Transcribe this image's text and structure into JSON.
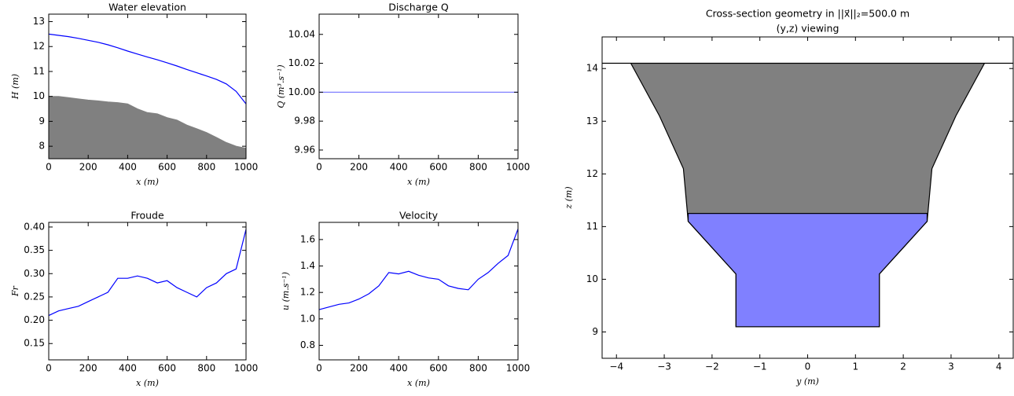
{
  "chart_data": [
    {
      "type": "line",
      "title": "Water elevation",
      "x_label": "x    (m)",
      "y_label": "H  (m)",
      "x": [
        0,
        50,
        100,
        150,
        200,
        250,
        300,
        350,
        400,
        450,
        500,
        550,
        600,
        650,
        700,
        750,
        800,
        850,
        900,
        950,
        1000
      ],
      "series": [
        {
          "color": "#0000ff",
          "fill": false,
          "values": [
            12.5,
            12.45,
            12.4,
            12.33,
            12.25,
            12.17,
            12.07,
            11.95,
            11.82,
            11.7,
            11.58,
            11.47,
            11.35,
            11.22,
            11.08,
            10.95,
            10.82,
            10.68,
            10.5,
            10.2,
            9.7
          ]
        },
        {
          "color": "#808080",
          "fill": true,
          "values": [
            10,
            10,
            9.95,
            9.9,
            9.85,
            9.82,
            9.78,
            9.75,
            9.7,
            9.5,
            9.35,
            9.3,
            9.15,
            9.05,
            8.85,
            8.7,
            8.55,
            8.35,
            8.15,
            8.0,
            7.92
          ]
        }
      ],
      "xlim": [
        0,
        1000
      ],
      "xticks": [
        0,
        200,
        400,
        600,
        800,
        1000
      ],
      "ylim": [
        7.5,
        13.3
      ],
      "yticks": [
        8,
        9,
        10,
        11,
        12,
        13
      ]
    },
    {
      "type": "line",
      "title": "Discharge Q",
      "x_label": "x    (m)",
      "y_label": "Q  (m³.s⁻¹)",
      "x": [
        0,
        1000
      ],
      "series": [
        {
          "color": "#8080ff",
          "fill": false,
          "values": [
            10,
            10
          ]
        }
      ],
      "xlim": [
        0,
        1000
      ],
      "xticks": [
        0,
        200,
        400,
        600,
        800,
        1000
      ],
      "ylim": [
        9.954,
        10.054
      ],
      "yticks": [
        9.96,
        9.98,
        {
          "value": 10,
          "label": "10.00"
        },
        10.02,
        10.04
      ]
    },
    {
      "type": "line",
      "title": "Froude",
      "x_label": "x    (m)",
      "y_label": "Fr",
      "x": [
        0,
        50,
        100,
        150,
        200,
        250,
        300,
        350,
        400,
        450,
        500,
        550,
        600,
        650,
        700,
        750,
        800,
        850,
        900,
        950,
        1000
      ],
      "series": [
        {
          "color": "#0000ff",
          "fill": false,
          "values": [
            0.21,
            0.22,
            0.225,
            0.23,
            0.24,
            0.25,
            0.26,
            0.29,
            0.29,
            0.295,
            0.29,
            0.28,
            0.285,
            0.27,
            0.26,
            0.25,
            0.27,
            0.28,
            0.3,
            0.31,
            0.395
          ]
        }
      ],
      "xlim": [
        0,
        1000
      ],
      "xticks": [
        0,
        200,
        400,
        600,
        800,
        1000
      ],
      "ylim": [
        0.115,
        0.41
      ],
      "yticks": [
        0.15,
        {
          "value": 0.2,
          "label": "0.20"
        },
        0.25,
        {
          "value": 0.3,
          "label": "0.30"
        },
        0.35,
        {
          "value": 0.4,
          "label": "0.40"
        }
      ]
    },
    {
      "type": "line",
      "title": "Velocity",
      "x_label": "x    (m)",
      "y_label": "u  (m.s⁻¹)",
      "x": [
        0,
        50,
        100,
        150,
        200,
        250,
        300,
        350,
        400,
        450,
        500,
        550,
        600,
        650,
        700,
        750,
        800,
        850,
        900,
        950,
        1000
      ],
      "series": [
        {
          "color": "#0000ff",
          "fill": false,
          "values": [
            1.07,
            1.09,
            1.11,
            1.12,
            1.15,
            1.19,
            1.25,
            1.35,
            1.34,
            1.36,
            1.33,
            1.31,
            1.3,
            1.25,
            1.23,
            1.22,
            1.3,
            1.35,
            1.42,
            1.48,
            1.68
          ]
        }
      ],
      "xlim": [
        0,
        1000
      ],
      "xticks": [
        0,
        200,
        400,
        600,
        800,
        1000
      ],
      "ylim": [
        0.69,
        1.73
      ],
      "yticks": [
        0.8,
        {
          "value": 1,
          "label": "1.0"
        },
        1.2,
        1.4,
        1.6
      ]
    },
    {
      "type": "polygon",
      "title": "Cross-section geometry in ||x⃗||₂=500.0  m",
      "subtitle": "(y,z) viewing",
      "x_label": "y (m)",
      "y_label": "z (m)",
      "polygons": [
        {
          "color": "#808080",
          "y": [
            -4.3,
            -3.7,
            -3.1,
            -2.6,
            -2.5,
            -1.5,
            -1.5,
            1.5,
            1.5,
            2.5,
            2.6,
            3.1,
            3.7,
            4.3
          ],
          "z": [
            14.1,
            14.1,
            13.1,
            12.1,
            11.1,
            10.1,
            9.1,
            9.1,
            10.1,
            11.1,
            12.1,
            13.1,
            14.1,
            14.1
          ]
        },
        {
          "color": "#8080ff",
          "y": [
            -2.5,
            -2.5,
            -1.5,
            -1.5,
            1.5,
            1.5,
            2.5,
            2.5
          ],
          "z": [
            11.25,
            11.1,
            10.1,
            9.1,
            9.1,
            10.1,
            11.1,
            11.25
          ]
        }
      ],
      "xlim": [
        -4.3,
        4.3
      ],
      "xticks": [
        {
          "value": -4,
          "label": "−4"
        },
        {
          "value": -3,
          "label": "−3"
        },
        {
          "value": -2,
          "label": "−2"
        },
        {
          "value": -1,
          "label": "−1"
        },
        0,
        1,
        2,
        3,
        4
      ],
      "ylim": [
        8.5,
        14.6
      ],
      "yticks": [
        9,
        10,
        11,
        12,
        13,
        14
      ]
    }
  ]
}
